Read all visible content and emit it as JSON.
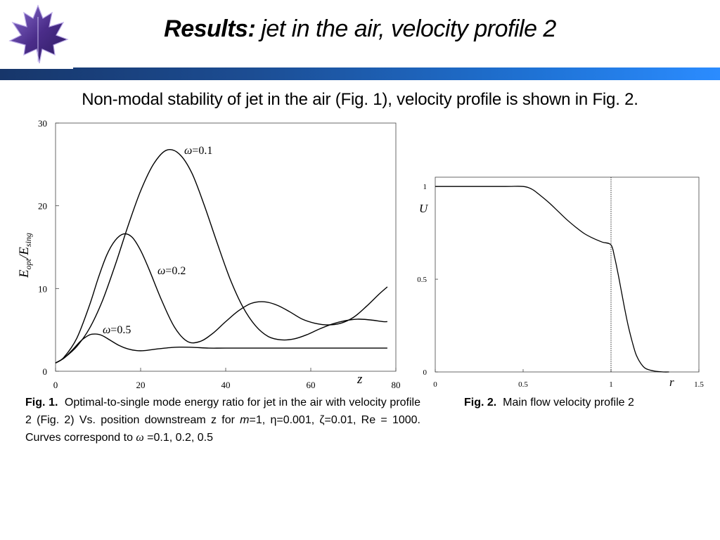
{
  "header": {
    "title_bold": "Results:",
    "title_rest": "jet in the air, velocity profile 2"
  },
  "subtitle": "Non-modal stability of jet in the air (Fig. 1), velocity profile is shown in Fig. 2.",
  "colors": {
    "band_dark": "#17366a",
    "band_light": "#2b8cff",
    "logo_purple": "#4b2d8a",
    "curve": "#000000"
  },
  "chart_data": [
    {
      "id": "fig1",
      "type": "line",
      "xlabel": "z",
      "ylabel": "E_opt/E_sing",
      "ylabel_main": "E",
      "ylabel_sub1": "opt",
      "ylabel_sub2": "sing",
      "xlim": [
        0,
        80
      ],
      "ylim": [
        0,
        30
      ],
      "x_ticks": [
        "0",
        "20",
        "40",
        "60",
        "80"
      ],
      "y_ticks": [
        "0",
        "10",
        "20",
        "30"
      ],
      "grid": false,
      "series": [
        {
          "name": "ω=0.1",
          "label_symbol": "ω",
          "label_value": "=0.1",
          "x": [
            0,
            2,
            5,
            8,
            11,
            14,
            17,
            20,
            23,
            26,
            29,
            32,
            35,
            38,
            41,
            44,
            47,
            50,
            53,
            56,
            59,
            62,
            65,
            68,
            71,
            74,
            77,
            78
          ],
          "y": [
            1.0,
            1.6,
            3.0,
            5.2,
            8.5,
            12.8,
            17.5,
            21.8,
            25.0,
            26.7,
            26.3,
            24.0,
            20.0,
            15.5,
            11.2,
            7.8,
            5.5,
            4.2,
            3.8,
            3.9,
            4.4,
            5.1,
            5.7,
            6.1,
            6.3,
            6.2,
            6.0,
            6.0
          ]
        },
        {
          "name": "ω=0.2",
          "label_symbol": "ω",
          "label_value": "=0.2",
          "x": [
            0,
            2,
            5,
            8,
            10,
            12,
            14,
            16,
            18,
            20,
            22,
            25,
            28,
            31,
            34,
            37,
            40,
            43,
            46,
            49,
            52,
            55,
            58,
            61,
            64,
            67,
            70,
            73,
            76,
            78
          ],
          "y": [
            1.0,
            1.7,
            4.0,
            8.0,
            11.2,
            14.0,
            15.8,
            16.6,
            16.2,
            14.6,
            12.3,
            8.5,
            5.3,
            3.6,
            3.6,
            4.6,
            6.0,
            7.3,
            8.2,
            8.4,
            8.0,
            7.2,
            6.3,
            5.8,
            5.6,
            5.8,
            6.5,
            7.8,
            9.3,
            10.2
          ]
        },
        {
          "name": "ω=0.5",
          "label_symbol": "ω",
          "label_value": "=0.5",
          "x": [
            0,
            2,
            4,
            6,
            8,
            9.5,
            11,
            13,
            15,
            17,
            19,
            21,
            24,
            28,
            32,
            36,
            40,
            50,
            60,
            70,
            78
          ],
          "y": [
            1.0,
            1.6,
            2.6,
            3.7,
            4.4,
            4.5,
            4.3,
            3.7,
            3.1,
            2.7,
            2.5,
            2.5,
            2.7,
            2.9,
            2.9,
            2.8,
            2.8,
            2.8,
            2.8,
            2.8,
            2.8
          ]
        }
      ]
    },
    {
      "id": "fig2",
      "type": "line",
      "xlabel": "r",
      "ylabel": "U",
      "xlim": [
        0,
        1.5
      ],
      "ylim": [
        0,
        1.05
      ],
      "x_ticks": [
        "0",
        "0.5",
        "1",
        "1.5"
      ],
      "y_ticks": [
        "0",
        "0.5",
        "1"
      ],
      "grid": false,
      "marker_x": 1,
      "series": [
        {
          "name": "",
          "x": [
            0,
            0.2,
            0.4,
            0.5,
            0.55,
            0.6,
            0.65,
            0.7,
            0.75,
            0.8,
            0.85,
            0.9,
            0.95,
            1.0,
            1.02,
            1.04,
            1.06,
            1.08,
            1.1,
            1.12,
            1.14,
            1.16,
            1.18,
            1.2,
            1.25,
            1.3,
            1.33
          ],
          "y": [
            1.0,
            1.0,
            1.0,
            1.0,
            0.985,
            0.95,
            0.91,
            0.865,
            0.82,
            0.78,
            0.745,
            0.72,
            0.7,
            0.685,
            0.62,
            0.53,
            0.43,
            0.33,
            0.24,
            0.165,
            0.1,
            0.06,
            0.033,
            0.017,
            0.004,
            0.0,
            0.0
          ]
        }
      ]
    }
  ],
  "captions": {
    "fig1": {
      "label": "Fig. 1.",
      "t1": "Optimal-to-single mode energy ratio for jet in the air with velocity profile 2 (Fig. 2) Vs. position downstream z for ",
      "m": "m",
      "t2": "=1, ",
      "eta": "η",
      "t3": "=0.001, ",
      "zeta": "ζ",
      "t4": "=0.01, Re = 1000. Curves correspond to ",
      "omega": "ω",
      "t5": " =0.1, 0.2, 0.5"
    },
    "fig2": {
      "label": "Fig. 2.",
      "text": "Main flow velocity profile 2"
    }
  }
}
